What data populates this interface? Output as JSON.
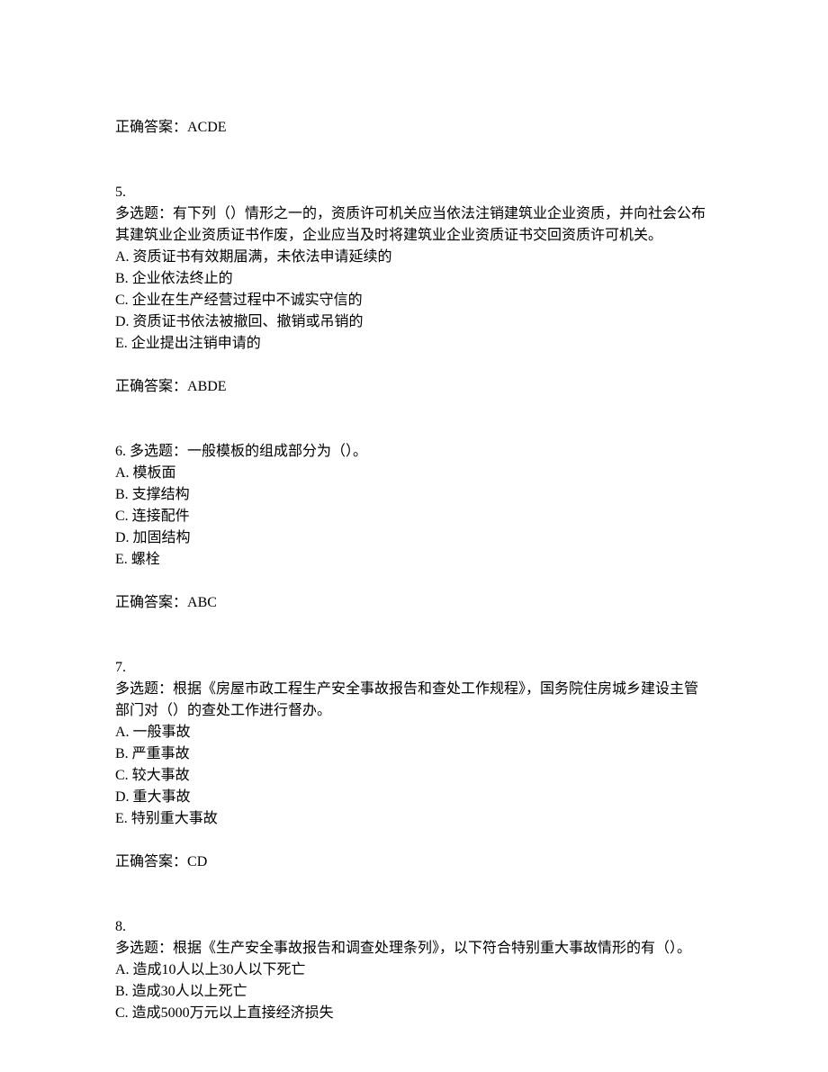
{
  "answerPrefix": "正确答案：",
  "prevAnswer": "ACDE",
  "questions": [
    {
      "number": "5.",
      "type": "多选题：",
      "text": "有下列（）情形之一的，资质许可机关应当依法注销建筑业企业资质，并向社会公布其建筑业企业资质证书作废，企业应当及时将建筑业企业资质证书交回资质许可机关。",
      "options": [
        "A. 资质证书有效期届满，未依法申请延续的",
        "B. 企业依法终止的",
        "C. 企业在生产经营过程中不诚实守信的",
        "D. 资质证书依法被撤回、撤销或吊销的",
        "E. 企业提出注销申请的"
      ],
      "answer": "ABDE",
      "inline": false
    },
    {
      "number": "6.  ",
      "type": "多选题：",
      "text": "一般模板的组成部分为（）。",
      "options": [
        "A. 模板面",
        "B. 支撑结构",
        "C. 连接配件",
        "D. 加固结构",
        "E. 螺栓"
      ],
      "answer": "ABC",
      "inline": true
    },
    {
      "number": "7.",
      "type": "多选题：",
      "text": "根据《房屋市政工程生产安全事故报告和查处工作规程》，国务院住房城乡建设主管部门对（）的查处工作进行督办。",
      "options": [
        "A. 一般事故",
        "B. 严重事故",
        "C. 较大事故",
        "D. 重大事故",
        "E. 特别重大事故"
      ],
      "answer": "CD",
      "inline": false
    },
    {
      "number": "8.",
      "type": "多选题：",
      "text": "根据《生产安全事故报告和调查处理条列》，以下符合特别重大事故情形的有（）。",
      "options": [
        "A. 造成10人以上30人以下死亡",
        "B. 造成30人以上死亡",
        "C. 造成5000万元以上直接经济损失"
      ],
      "answer": null,
      "inline": false
    }
  ]
}
